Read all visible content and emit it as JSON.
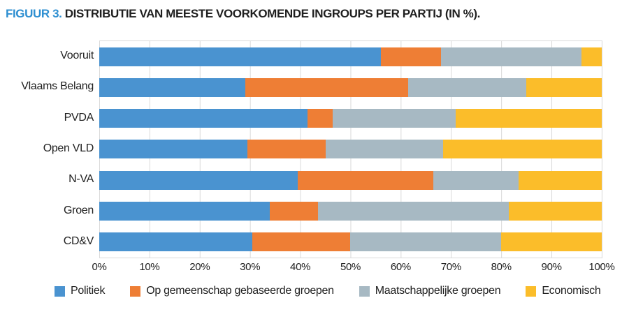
{
  "title": {
    "prefix": "FIGUUR 3.",
    "rest": " DISTRIBUTIE VAN MEESTE VOORKOMENDE INGROUPS PER PARTIJ (IN %)."
  },
  "colors": {
    "title_accent": "#2E8FD1",
    "text": "#212121",
    "gridline": "#DADADA",
    "politiek": "#4A93D0",
    "gemeenschap": "#EE7E35",
    "maatschappelijk": "#A7B9C3",
    "economisch": "#FBBD2A"
  },
  "chart_data": {
    "type": "bar",
    "orientation": "horizontal",
    "stacked": true,
    "title": "FIGUUR 3. DISTRIBUTIE VAN MEESTE VOORKOMENDE INGROUPS PER PARTIJ (IN %).",
    "categories": [
      "Vooruit",
      "Vlaams Belang",
      "PVDA",
      "Open VLD",
      "N-VA",
      "Groen",
      "CD&V"
    ],
    "series": [
      {
        "name": "Politiek",
        "color": "#4A93D0",
        "values": [
          56,
          29,
          41.5,
          29.5,
          39.5,
          34,
          30.5
        ]
      },
      {
        "name": "Op gemeenschap gebaseerde groepen",
        "color": "#EE7E35",
        "values": [
          12,
          32.5,
          5,
          15.5,
          27,
          9.5,
          19.5
        ]
      },
      {
        "name": "Maatschappelijke groepen",
        "color": "#A7B9C3",
        "values": [
          28,
          23.5,
          24.5,
          23.5,
          17,
          38,
          30
        ]
      },
      {
        "name": "Economisch",
        "color": "#FBBD2A",
        "values": [
          4,
          15,
          29,
          31.5,
          16.5,
          18.5,
          20
        ]
      }
    ],
    "x_ticks": [
      "0%",
      "10%",
      "20%",
      "30%",
      "40%",
      "50%",
      "60%",
      "70%",
      "80%",
      "90%",
      "100%"
    ],
    "xlim": [
      0,
      100
    ],
    "xlabel": "",
    "ylabel": "",
    "grid": "vertical",
    "legend_position": "bottom"
  }
}
